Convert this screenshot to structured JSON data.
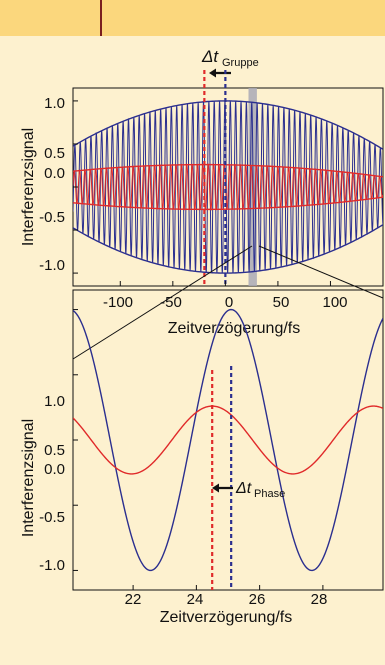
{
  "colors": {
    "background": "#fdf1cf",
    "header_band": "#fbd77d",
    "header_rule": "#7a1f1f",
    "blue": "#2b2f8f",
    "red": "#e02a2a",
    "highlight": "#a9a9b6"
  },
  "annotations": {
    "group_delay": {
      "symbol": "Δt",
      "subscript": "Gruppe",
      "arrow": "left"
    },
    "phase_delay": {
      "symbol": "Δt",
      "subscript": "Phase",
      "arrow": "left"
    }
  },
  "chart_data": [
    {
      "type": "line",
      "xlabel": "Zeitverzögerung/fs",
      "ylabel": "Interferenzsignal",
      "xlim": [
        -145,
        150
      ],
      "ylim": [
        -1.15,
        1.15
      ],
      "xticks": [
        -100,
        -50,
        0,
        50,
        100
      ],
      "xtick_labels": [
        "-100",
        "-50",
        "0",
        "50",
        "100"
      ],
      "yticks": [
        1.0,
        0.5,
        0.0,
        -0.5,
        -1.0
      ],
      "ytick_labels": [
        "1.0",
        "0.5",
        "0.0",
        "-0.5",
        "-1.0"
      ],
      "grid": false,
      "series": [
        {
          "color": "#2b2f8f",
          "amplitude": 1.0,
          "envelope_center": 0,
          "envelope_width": 200,
          "period": 5.1,
          "phase_peak": 25.1
        },
        {
          "color": "#e02a2a",
          "amplitude": 0.26,
          "envelope_center": -20,
          "envelope_width": 230,
          "period": 5.1,
          "phase_peak": 24.5
        }
      ],
      "vlines": [
        {
          "x": -20,
          "color": "#e02a2a",
          "style": "dashed"
        },
        {
          "x": 0,
          "color": "#2b2f8f",
          "style": "dashed"
        }
      ],
      "highlight_band": [
        22,
        30
      ]
    },
    {
      "type": "line",
      "xlabel": "Zeitverzögerung/fs",
      "ylabel": "Interferenzsignal",
      "xlim": [
        20.1,
        29.9
      ],
      "ylim": [
        -1.15,
        1.15
      ],
      "xticks": [
        22,
        24,
        26,
        28
      ],
      "xtick_labels": [
        "22",
        "24",
        "26",
        "28"
      ],
      "yticks": [
        1.0,
        0.5,
        0.0,
        -0.5,
        -1.0
      ],
      "ytick_labels": [
        "1.0",
        "0.5",
        "0.0",
        "-0.5",
        "-1.0"
      ],
      "grid": false,
      "series": [
        {
          "color": "#2b2f8f",
          "amplitude": 1.0,
          "period": 5.1,
          "phase_peak": 25.1
        },
        {
          "color": "#e02a2a",
          "amplitude": 0.26,
          "period": 5.1,
          "phase_peak": 24.5
        }
      ],
      "vlines": [
        {
          "x": 24.5,
          "color": "#e02a2a",
          "style": "dashed"
        },
        {
          "x": 25.1,
          "color": "#2b2f8f",
          "style": "dashed"
        }
      ]
    }
  ]
}
